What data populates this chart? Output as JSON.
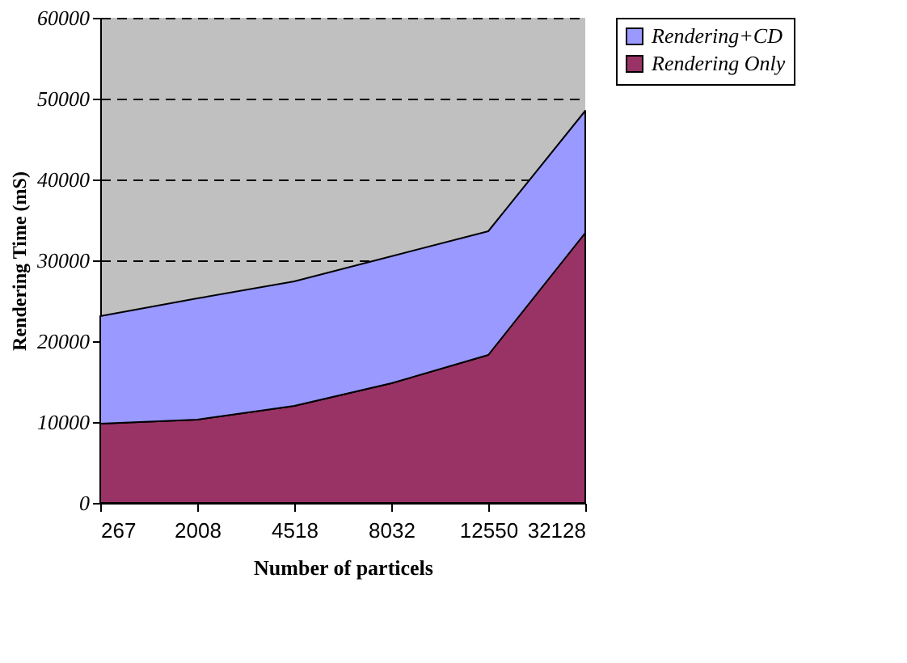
{
  "chart_data": {
    "type": "area",
    "stacked": true,
    "xlabel": "Number of particels",
    "ylabel": "Rendering Time (mS)",
    "categories": [
      "267",
      "2008",
      "4518",
      "8032",
      "12550",
      "32128"
    ],
    "series": [
      {
        "name": "Rendering Only",
        "color": "#993366",
        "values": [
          9800,
          10300,
          12000,
          14800,
          18300,
          33400
        ]
      },
      {
        "name": "Rendering+CD",
        "color": "#9999ff",
        "values": [
          13300,
          15000,
          15400,
          15700,
          15300,
          15100
        ]
      }
    ],
    "ylim": [
      0,
      60000
    ],
    "yticks": [
      0,
      10000,
      20000,
      30000,
      40000,
      50000,
      60000
    ],
    "grid": "y",
    "legend": "right"
  }
}
